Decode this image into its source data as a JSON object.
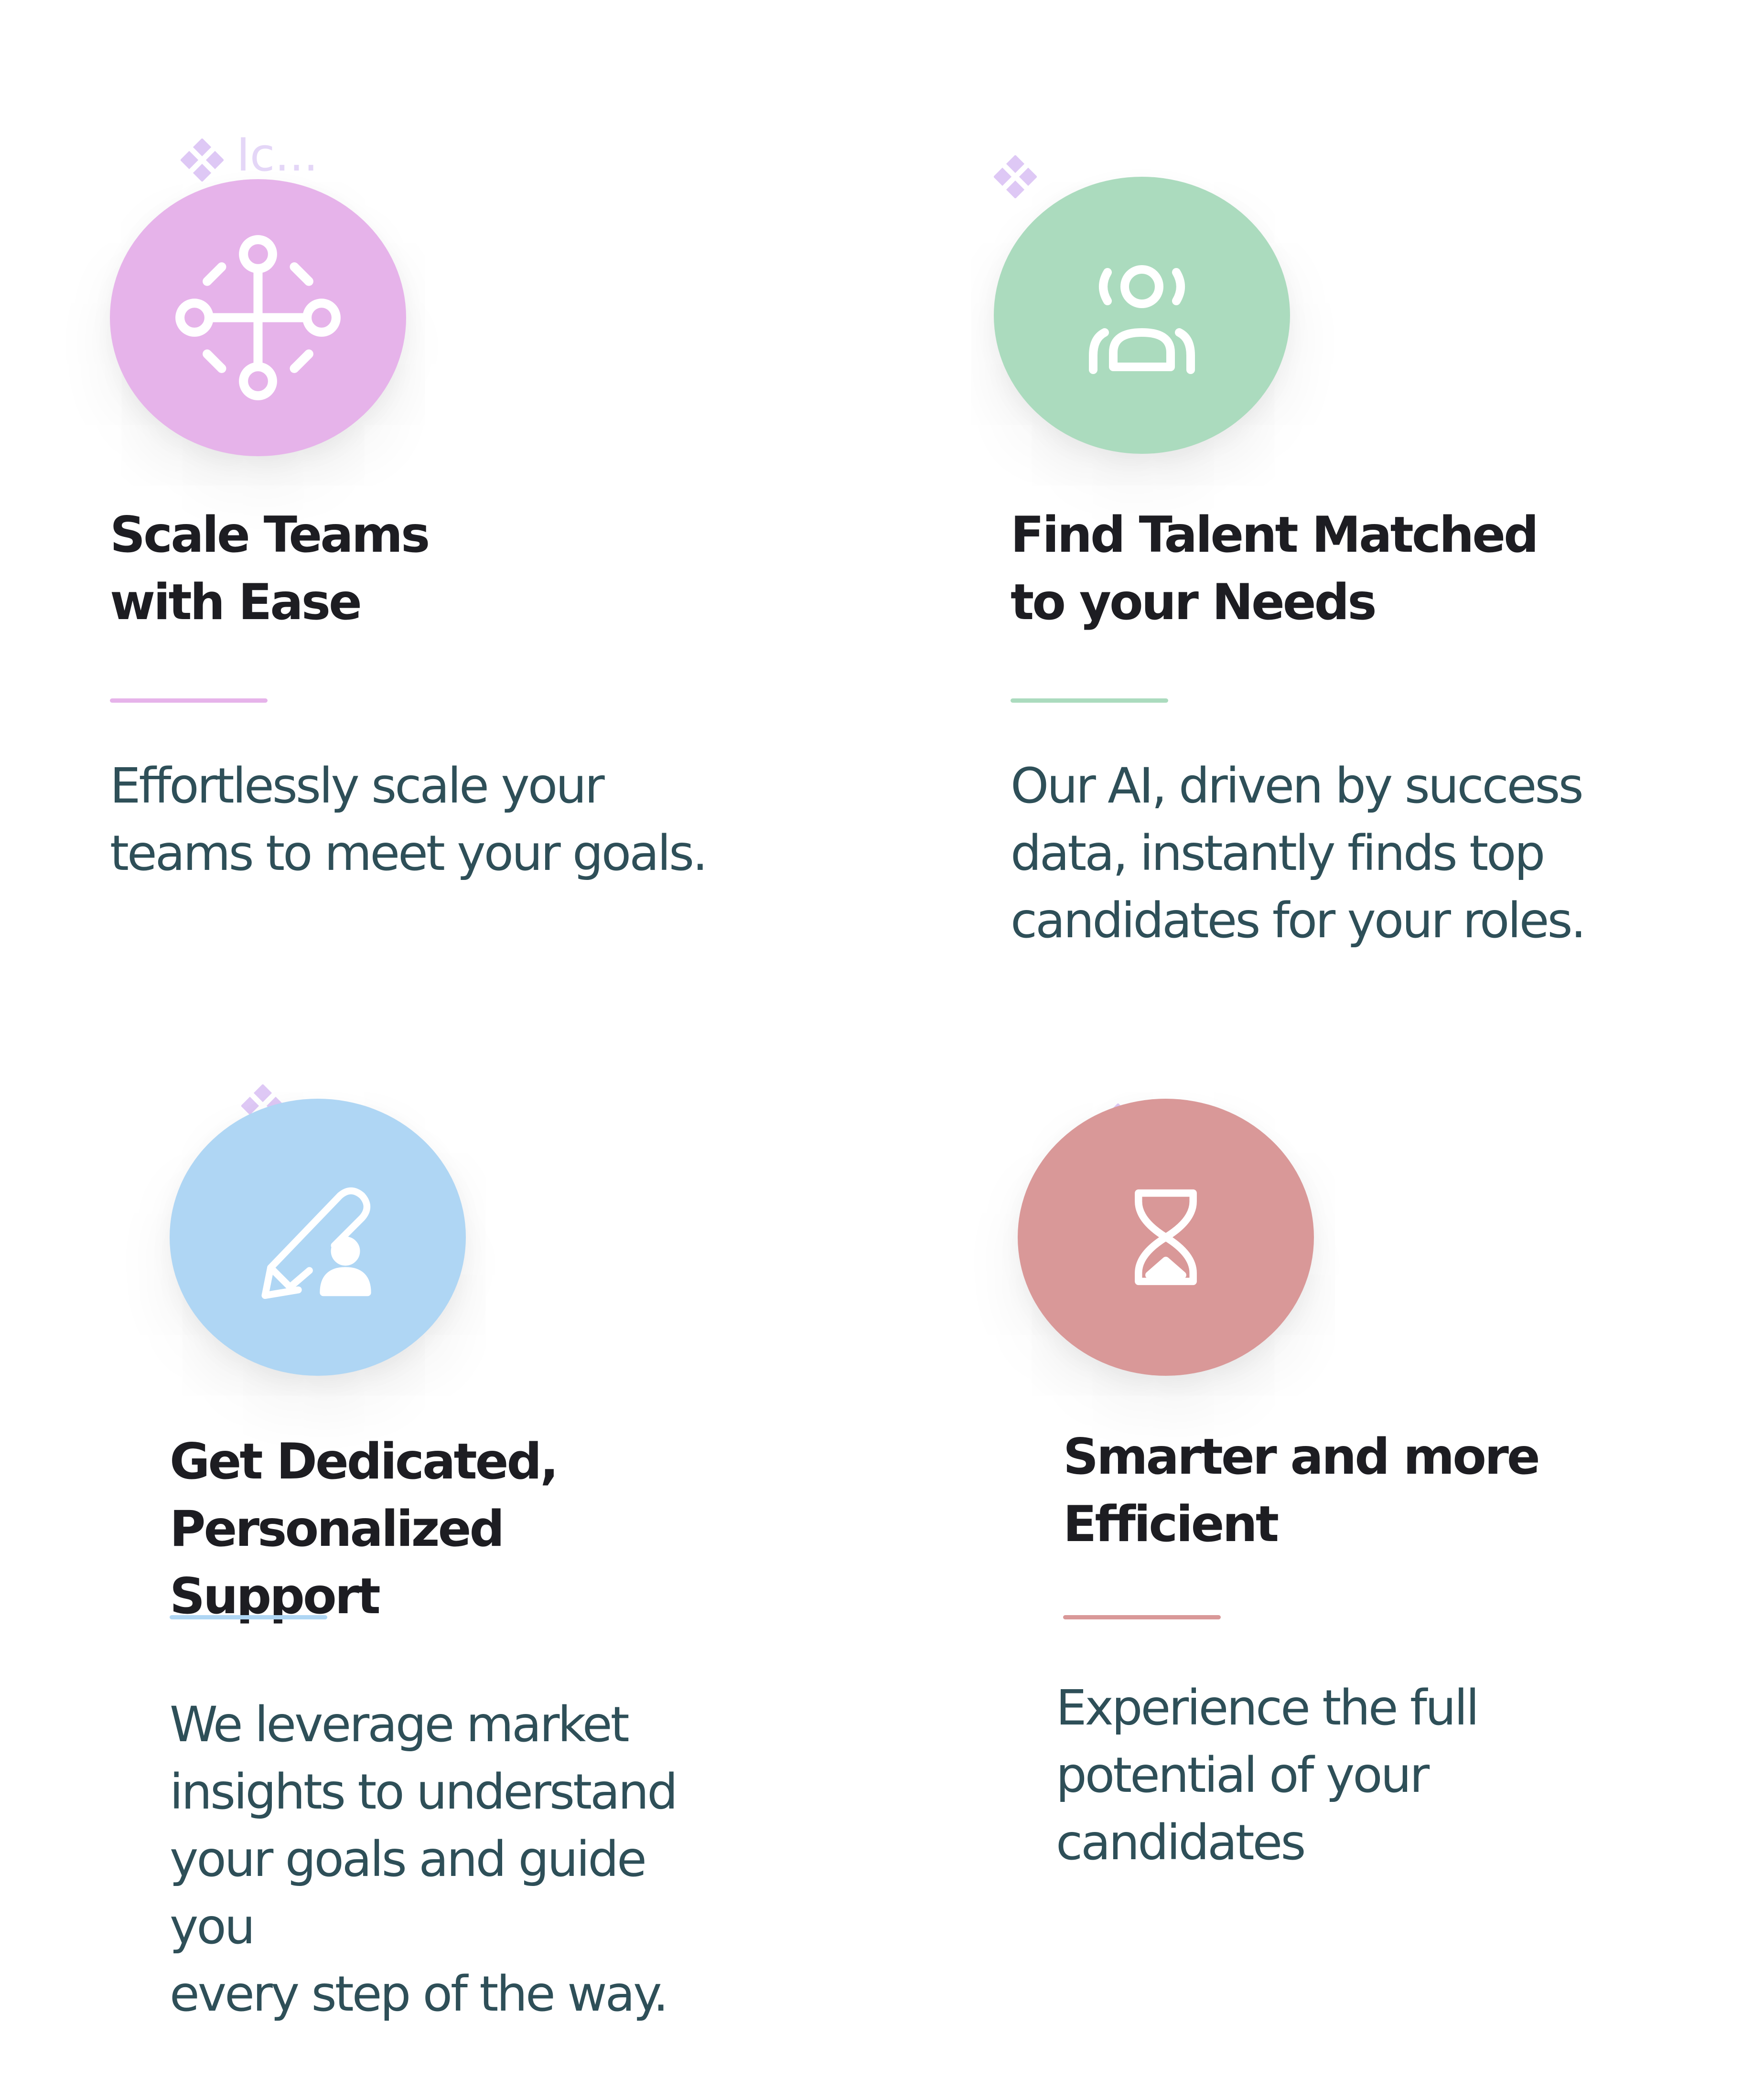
{
  "colors": {
    "pink": "#e6b3ea",
    "green": "#abdbbe",
    "blue": "#afd6f4",
    "red": "#d99898",
    "title_text": "#1d1d22",
    "body_text": "#2e4f58",
    "sparkle": "#dec8f5"
  },
  "ghost_label": "Ic...",
  "features": [
    {
      "icon": "network-nodes-icon",
      "color": "#e6b3ea",
      "title_line1": "Scale Teams",
      "title_line2": "with Ease",
      "desc_line1": "Effortlessly scale your",
      "desc_line2": "teams to meet your goals.",
      "desc_line3": ""
    },
    {
      "icon": "focus-person-icon",
      "color": "#abdbbe",
      "title_line1": "Find Talent Matched",
      "title_line2": "to your Needs",
      "desc_line1": "Our AI, driven by success",
      "desc_line2": "data, instantly finds top",
      "desc_line3": "candidates for your roles."
    },
    {
      "icon": "pen-person-icon",
      "color": "#afd6f4",
      "title_line1": "Get Dedicated,",
      "title_line2": "Personalized Support",
      "desc_line1": "We leverage market",
      "desc_line2": "insights to understand",
      "desc_line3": "your goals and guide you",
      "desc_line4": "every step of the way."
    },
    {
      "icon": "hourglass-icon",
      "color": "#d99898",
      "title_line1": "Smarter and more",
      "title_line2": "Efficient",
      "desc_line1": "Experience the full",
      "desc_line2": "potential of your",
      "desc_line3": "candidates"
    }
  ]
}
